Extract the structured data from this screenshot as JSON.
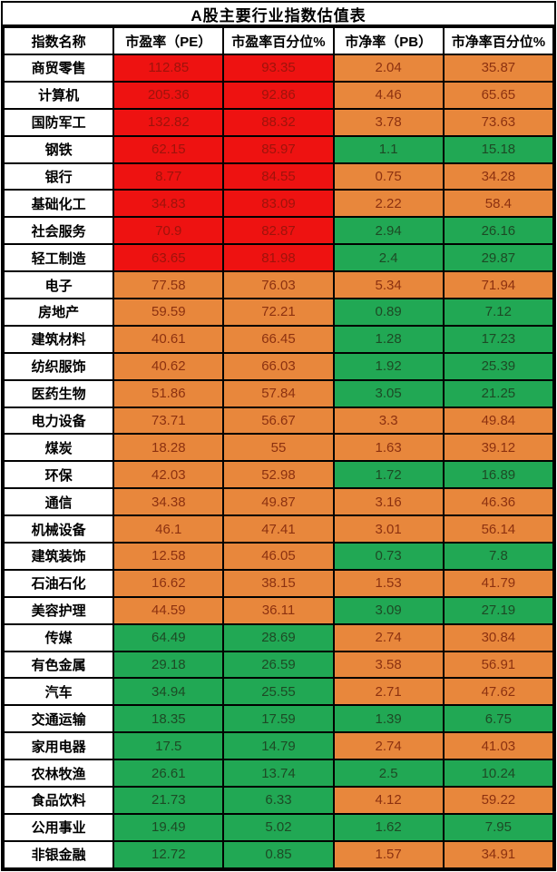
{
  "title": "A股主要行业指数估值表",
  "columns": [
    "指数名称",
    "市盈率（PE）",
    "市盈率百分位%",
    "市净率（PB）",
    "市净率百分位%"
  ],
  "palette": {
    "border": "#000000",
    "red_bg": "#ee1211",
    "red_text": "#9e130b",
    "orange_bg": "#e8873c",
    "orange_text": "#8c3110",
    "green_bg": "#21a854",
    "green_text": "#1d4a25",
    "header_bg": "#ffffff",
    "header_text": "#000000"
  },
  "chart_data": {
    "type": "table",
    "title": "A股主要行业指数估值表",
    "columns": [
      "指数名称",
      "市盈率（PE）",
      "市盈率百分位%",
      "市净率（PB）",
      "市净率百分位%"
    ],
    "color_legend": "red=高估, orange=中性偏高, green=低估 (cell background classes)",
    "rows": [
      {
        "name": "商贸零售",
        "values": [
          "112.85",
          "93.35",
          "2.04",
          "35.87"
        ],
        "colors": [
          "red",
          "red",
          "orange",
          "orange"
        ]
      },
      {
        "name": "计算机",
        "values": [
          "205.36",
          "92.86",
          "4.46",
          "65.65"
        ],
        "colors": [
          "red",
          "red",
          "orange",
          "orange"
        ]
      },
      {
        "name": "国防军工",
        "values": [
          "132.82",
          "88.32",
          "3.78",
          "73.63"
        ],
        "colors": [
          "red",
          "red",
          "orange",
          "orange"
        ]
      },
      {
        "name": "钢铁",
        "values": [
          "62.15",
          "85.97",
          "1.1",
          "15.18"
        ],
        "colors": [
          "red",
          "red",
          "green",
          "green"
        ]
      },
      {
        "name": "银行",
        "values": [
          "8.77",
          "84.55",
          "0.75",
          "34.28"
        ],
        "colors": [
          "red",
          "red",
          "orange",
          "orange"
        ]
      },
      {
        "name": "基础化工",
        "values": [
          "34.83",
          "83.09",
          "2.22",
          "58.4"
        ],
        "colors": [
          "red",
          "red",
          "orange",
          "orange"
        ]
      },
      {
        "name": "社会服务",
        "values": [
          "70.9",
          "82.87",
          "2.94",
          "26.16"
        ],
        "colors": [
          "red",
          "red",
          "green",
          "green"
        ]
      },
      {
        "name": "轻工制造",
        "values": [
          "63.65",
          "81.98",
          "2.4",
          "29.87"
        ],
        "colors": [
          "red",
          "red",
          "green",
          "green"
        ]
      },
      {
        "name": "电子",
        "values": [
          "77.58",
          "76.03",
          "5.34",
          "71.94"
        ],
        "colors": [
          "orange",
          "orange",
          "orange",
          "orange"
        ]
      },
      {
        "name": "房地产",
        "values": [
          "59.59",
          "72.21",
          "0.89",
          "7.12"
        ],
        "colors": [
          "orange",
          "orange",
          "green",
          "green"
        ]
      },
      {
        "name": "建筑材料",
        "values": [
          "40.61",
          "66.45",
          "1.28",
          "17.23"
        ],
        "colors": [
          "orange",
          "orange",
          "green",
          "green"
        ]
      },
      {
        "name": "纺织服饰",
        "values": [
          "40.62",
          "66.03",
          "1.92",
          "25.39"
        ],
        "colors": [
          "orange",
          "orange",
          "green",
          "green"
        ]
      },
      {
        "name": "医药生物",
        "values": [
          "51.86",
          "57.84",
          "3.05",
          "21.25"
        ],
        "colors": [
          "orange",
          "orange",
          "green",
          "green"
        ]
      },
      {
        "name": "电力设备",
        "values": [
          "73.71",
          "56.67",
          "3.3",
          "49.84"
        ],
        "colors": [
          "orange",
          "orange",
          "orange",
          "orange"
        ]
      },
      {
        "name": "煤炭",
        "values": [
          "18.28",
          "55",
          "1.63",
          "39.12"
        ],
        "colors": [
          "orange",
          "orange",
          "orange",
          "orange"
        ]
      },
      {
        "name": "环保",
        "values": [
          "42.03",
          "52.98",
          "1.72",
          "16.89"
        ],
        "colors": [
          "orange",
          "orange",
          "green",
          "green"
        ]
      },
      {
        "name": "通信",
        "values": [
          "34.38",
          "49.87",
          "3.16",
          "46.36"
        ],
        "colors": [
          "orange",
          "orange",
          "orange",
          "orange"
        ]
      },
      {
        "name": "机械设备",
        "values": [
          "46.1",
          "47.41",
          "3.01",
          "56.14"
        ],
        "colors": [
          "orange",
          "orange",
          "orange",
          "orange"
        ]
      },
      {
        "name": "建筑装饰",
        "values": [
          "12.58",
          "46.05",
          "0.73",
          "7.8"
        ],
        "colors": [
          "orange",
          "orange",
          "green",
          "green"
        ]
      },
      {
        "name": "石油石化",
        "values": [
          "16.62",
          "38.15",
          "1.53",
          "41.79"
        ],
        "colors": [
          "orange",
          "orange",
          "orange",
          "orange"
        ]
      },
      {
        "name": "美容护理",
        "values": [
          "44.59",
          "36.11",
          "3.09",
          "27.19"
        ],
        "colors": [
          "orange",
          "orange",
          "green",
          "green"
        ]
      },
      {
        "name": "传媒",
        "values": [
          "64.49",
          "28.69",
          "2.74",
          "30.84"
        ],
        "colors": [
          "green",
          "green",
          "orange",
          "orange"
        ]
      },
      {
        "name": "有色金属",
        "values": [
          "29.18",
          "26.59",
          "3.58",
          "56.91"
        ],
        "colors": [
          "green",
          "green",
          "orange",
          "orange"
        ]
      },
      {
        "name": "汽车",
        "values": [
          "34.94",
          "25.55",
          "2.71",
          "47.62"
        ],
        "colors": [
          "green",
          "green",
          "orange",
          "orange"
        ]
      },
      {
        "name": "交通运输",
        "values": [
          "18.35",
          "17.59",
          "1.39",
          "6.75"
        ],
        "colors": [
          "green",
          "green",
          "green",
          "green"
        ]
      },
      {
        "name": "家用电器",
        "values": [
          "17.5",
          "14.79",
          "2.74",
          "41.03"
        ],
        "colors": [
          "green",
          "green",
          "orange",
          "orange"
        ]
      },
      {
        "name": "农林牧渔",
        "values": [
          "26.61",
          "13.74",
          "2.5",
          "10.24"
        ],
        "colors": [
          "green",
          "green",
          "green",
          "green"
        ]
      },
      {
        "name": "食品饮料",
        "values": [
          "21.73",
          "6.33",
          "4.12",
          "59.22"
        ],
        "colors": [
          "green",
          "green",
          "orange",
          "orange"
        ]
      },
      {
        "name": "公用事业",
        "values": [
          "19.49",
          "5.02",
          "1.62",
          "7.95"
        ],
        "colors": [
          "green",
          "green",
          "green",
          "green"
        ]
      },
      {
        "name": "非银金融",
        "values": [
          "12.72",
          "0.85",
          "1.57",
          "34.91"
        ],
        "colors": [
          "green",
          "green",
          "orange",
          "orange"
        ]
      }
    ]
  }
}
